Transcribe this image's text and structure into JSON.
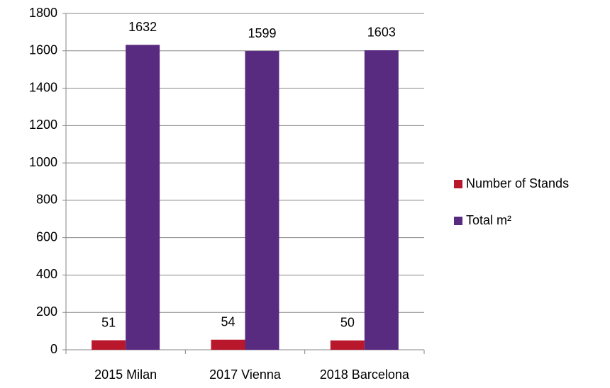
{
  "chart_data": {
    "type": "bar",
    "categories": [
      "2015 Milan",
      "2017 Vienna",
      "2018 Barcelona"
    ],
    "series": [
      {
        "name": "Number of Stands",
        "color": "#b8172c",
        "values": [
          51,
          54,
          50
        ]
      },
      {
        "name": "Total m²",
        "color": "#582a80",
        "values": [
          1632,
          1599,
          1603
        ]
      }
    ],
    "ylim": [
      0,
      1800
    ],
    "yticks": [
      0,
      200,
      400,
      600,
      800,
      1000,
      1200,
      1400,
      1600,
      1800
    ],
    "grid": true,
    "legend": "right"
  }
}
